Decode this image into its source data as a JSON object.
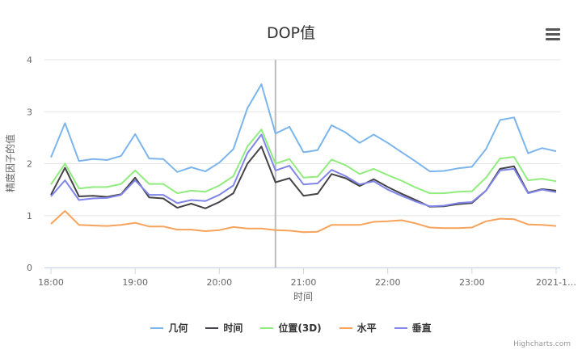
{
  "chart_data": {
    "type": "line",
    "title": "DOP值",
    "xlabel": "时间",
    "ylabel": "精度因子的值",
    "ylim": [
      0,
      4
    ],
    "yticks": [
      "0",
      "1",
      "2",
      "3",
      "4"
    ],
    "xticks": [
      "18:00",
      "19:00",
      "20:00",
      "21:00",
      "22:00",
      "23:00",
      "2021-1…"
    ],
    "x_interval_minutes": 10,
    "x_start": "18:00",
    "crosshair_at": "20:40",
    "grid": true,
    "legend": "bottom",
    "series": [
      {
        "name": "几何",
        "color": "#7cb5ec",
        "values": [
          2.12,
          2.78,
          2.05,
          2.09,
          2.07,
          2.15,
          2.57,
          2.1,
          2.09,
          1.84,
          1.93,
          1.85,
          2.02,
          2.28,
          3.07,
          3.53,
          2.58,
          2.71,
          2.22,
          2.26,
          2.74,
          2.6,
          2.4,
          2.56,
          2.4,
          2.22,
          2.04,
          1.85,
          1.86,
          1.91,
          1.94,
          2.28,
          2.84,
          2.89,
          2.2,
          2.3,
          2.24
        ]
      },
      {
        "name": "时间",
        "color": "#434348",
        "values": [
          1.4,
          1.92,
          1.37,
          1.38,
          1.36,
          1.41,
          1.73,
          1.35,
          1.33,
          1.15,
          1.23,
          1.14,
          1.26,
          1.43,
          2.0,
          2.33,
          1.64,
          1.72,
          1.38,
          1.42,
          1.8,
          1.72,
          1.57,
          1.7,
          1.55,
          1.42,
          1.3,
          1.17,
          1.18,
          1.22,
          1.24,
          1.48,
          1.9,
          1.95,
          1.44,
          1.51,
          1.48
        ]
      },
      {
        "name": "位置(3D)",
        "color": "#90ed7d",
        "values": [
          1.6,
          2.0,
          1.52,
          1.55,
          1.55,
          1.61,
          1.87,
          1.61,
          1.61,
          1.43,
          1.48,
          1.46,
          1.58,
          1.76,
          2.33,
          2.66,
          2.0,
          2.09,
          1.73,
          1.75,
          2.08,
          1.97,
          1.8,
          1.9,
          1.78,
          1.67,
          1.54,
          1.43,
          1.43,
          1.46,
          1.47,
          1.73,
          2.1,
          2.13,
          1.68,
          1.71,
          1.66
        ]
      },
      {
        "name": "水平",
        "color": "#f7a35c",
        "values": [
          0.84,
          1.09,
          0.82,
          0.81,
          0.8,
          0.82,
          0.86,
          0.79,
          0.79,
          0.73,
          0.73,
          0.7,
          0.72,
          0.78,
          0.75,
          0.75,
          0.72,
          0.71,
          0.68,
          0.69,
          0.82,
          0.82,
          0.82,
          0.88,
          0.89,
          0.91,
          0.85,
          0.77,
          0.76,
          0.76,
          0.77,
          0.89,
          0.94,
          0.93,
          0.83,
          0.82,
          0.8
        ]
      },
      {
        "name": "垂直",
        "color": "#8085e9",
        "values": [
          1.37,
          1.68,
          1.3,
          1.33,
          1.34,
          1.4,
          1.68,
          1.4,
          1.4,
          1.24,
          1.3,
          1.28,
          1.4,
          1.58,
          2.2,
          2.56,
          1.87,
          1.96,
          1.6,
          1.62,
          1.88,
          1.76,
          1.6,
          1.66,
          1.5,
          1.38,
          1.27,
          1.18,
          1.19,
          1.24,
          1.26,
          1.48,
          1.87,
          1.9,
          1.43,
          1.5,
          1.45
        ]
      }
    ]
  },
  "credits": "Highcharts.com",
  "menu_icon": "hamburger-menu-icon"
}
